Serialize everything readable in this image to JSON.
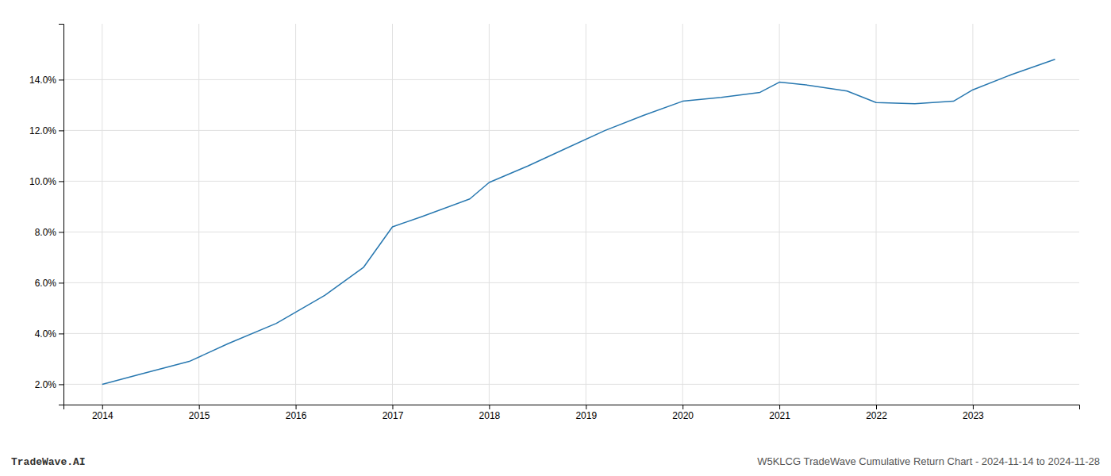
{
  "chart_data": {
    "type": "line",
    "x": [
      2014.0,
      2014.4,
      2014.9,
      2015.3,
      2015.8,
      2016.3,
      2016.7,
      2017.0,
      2017.3,
      2017.8,
      2018.0,
      2018.4,
      2018.8,
      2019.2,
      2019.6,
      2020.0,
      2020.4,
      2020.8,
      2021.0,
      2021.3,
      2021.7,
      2022.0,
      2022.4,
      2022.8,
      2023.0,
      2023.4,
      2023.85
    ],
    "values": [
      2.0,
      2.4,
      2.9,
      3.6,
      4.4,
      5.5,
      6.6,
      8.2,
      8.6,
      9.3,
      9.95,
      10.6,
      11.3,
      12.0,
      12.6,
      13.15,
      13.3,
      13.5,
      13.9,
      13.78,
      13.55,
      13.1,
      13.05,
      13.15,
      13.6,
      14.2,
      14.8
    ],
    "color": "#2878b0",
    "xlim": [
      2013.6,
      2024.1
    ],
    "ylim": [
      1.2,
      16.2
    ],
    "xticks": [
      2014,
      2015,
      2016,
      2017,
      2018,
      2019,
      2020,
      2021,
      2022,
      2023
    ],
    "yticks": [
      {
        "value": 2.0,
        "label": "2.0%"
      },
      {
        "value": 4.0,
        "label": "4.0%"
      },
      {
        "value": 6.0,
        "label": "6.0%"
      },
      {
        "value": 8.0,
        "label": "8.0%"
      },
      {
        "value": 10.0,
        "label": "10.0%"
      },
      {
        "value": 12.0,
        "label": "12.0%"
      },
      {
        "value": 14.0,
        "label": "14.0%"
      }
    ],
    "grid": true,
    "annotations": [
      "TradeWave.AI",
      "W5KLCG TradeWave Cumulative Return Chart - 2024-11-14 to 2024-11-28"
    ]
  }
}
